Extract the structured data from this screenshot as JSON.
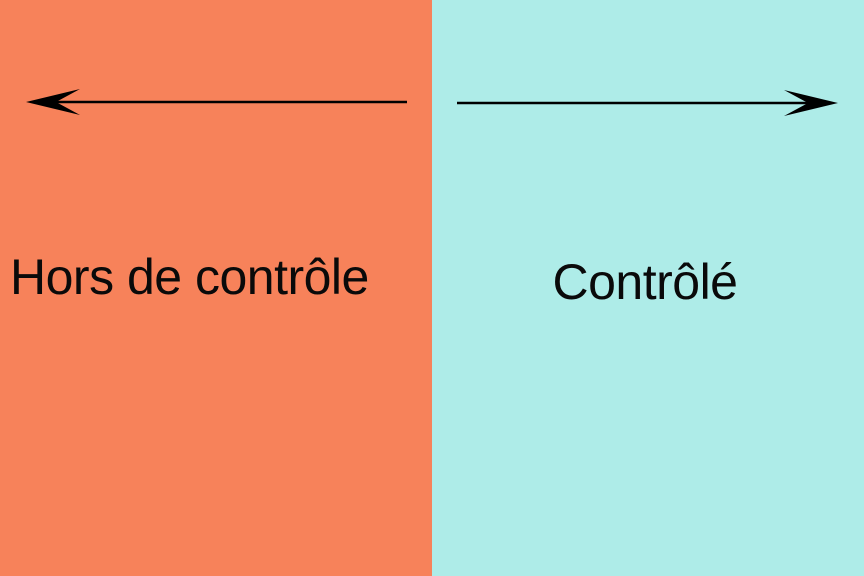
{
  "colors": {
    "left_panel": "#f7825a",
    "right_panel": "#aeece8",
    "arrow": "#000000",
    "text": "#0a0a0a"
  },
  "left_panel": {
    "label": "Hors de contrôle",
    "arrow_direction": "left"
  },
  "right_panel": {
    "label": "Contrôlé",
    "arrow_direction": "right"
  }
}
